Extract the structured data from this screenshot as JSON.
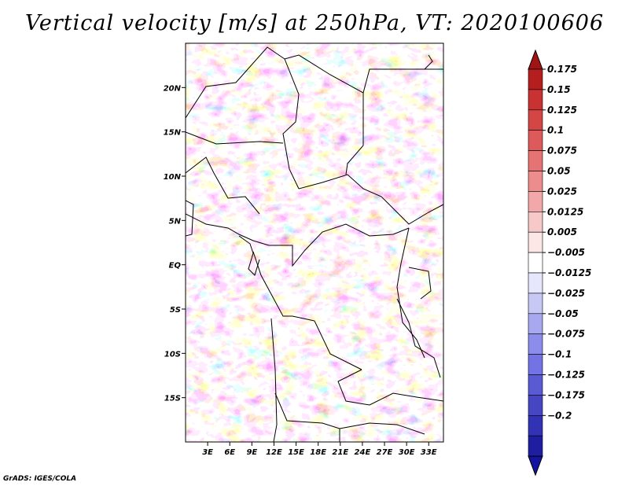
{
  "title": "Vertical velocity [m/s] at 250hPa, VT: 2020100606",
  "credit": "GrADS: IGES/COLA",
  "map": {
    "lon_range": [
      0,
      35
    ],
    "lat_range": [
      -20,
      25
    ],
    "lat_ticks": [
      {
        "label": "20N",
        "value": 20
      },
      {
        "label": "15N",
        "value": 15
      },
      {
        "label": "10N",
        "value": 10
      },
      {
        "label": "5N",
        "value": 5
      },
      {
        "label": "EQ",
        "value": 0
      },
      {
        "label": "5S",
        "value": -5
      },
      {
        "label": "10S",
        "value": -10
      },
      {
        "label": "15S",
        "value": -15
      }
    ],
    "lon_ticks": [
      {
        "label": "3E",
        "value": 3
      },
      {
        "label": "6E",
        "value": 6
      },
      {
        "label": "9E",
        "value": 9
      },
      {
        "label": "12E",
        "value": 12
      },
      {
        "label": "15E",
        "value": 15
      },
      {
        "label": "18E",
        "value": 18
      },
      {
        "label": "21E",
        "value": 21
      },
      {
        "label": "24E",
        "value": 24
      },
      {
        "label": "27E",
        "value": 27
      },
      {
        "label": "30E",
        "value": 30
      },
      {
        "label": "33E",
        "value": 33
      }
    ]
  },
  "colorbar": {
    "levels": [
      "0.175",
      "0.15",
      "0.125",
      "0.1",
      "0.075",
      "0.05",
      "0.025",
      "0.0125",
      "0.005",
      "−0.005",
      "−0.0125",
      "−0.025",
      "−0.05",
      "−0.075",
      "−0.1",
      "−0.125",
      "−0.175",
      "−0.2"
    ],
    "colors": [
      "#b41e1e",
      "#c83232",
      "#d24646",
      "#dc5a5a",
      "#e67373",
      "#ec8c8c",
      "#f2a8a8",
      "#f7c8c8",
      "#fce6e6",
      "#ffffff",
      "#e6e6fc",
      "#c8c8f5",
      "#a8a8f0",
      "#8c8ceb",
      "#7373e6",
      "#5a5ad2",
      "#4646c3",
      "#3232b4",
      "#1e1ea0"
    ],
    "top_triangle_color": "#a01414",
    "bottom_triangle_color": "#1414a0"
  }
}
